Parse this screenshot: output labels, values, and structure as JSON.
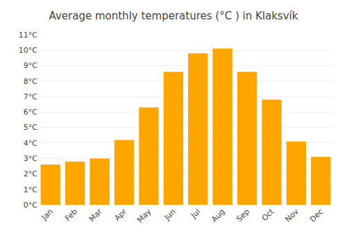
{
  "chart_data": {
    "type": "bar",
    "title": "Average monthly temperatures (°C ) in Klaksvík",
    "categories": [
      "Jan",
      "Feb",
      "Mar",
      "Apr",
      "May",
      "Jun",
      "Jul",
      "Aug",
      "Sep",
      "Oct",
      "Nov",
      "Dec"
    ],
    "values": [
      2.6,
      2.8,
      3.0,
      4.2,
      6.3,
      8.6,
      9.8,
      10.1,
      8.6,
      6.8,
      4.1,
      3.1
    ],
    "color": "#FFA500",
    "ylim": [
      0,
      11
    ],
    "yticks": [
      {
        "value": 0,
        "label": "0°C"
      },
      {
        "value": 1,
        "label": "1°C"
      },
      {
        "value": 2,
        "label": "2°C"
      },
      {
        "value": 3,
        "label": "3°C"
      },
      {
        "value": 4,
        "label": "4°C"
      },
      {
        "value": 5,
        "label": "5°C"
      },
      {
        "value": 6,
        "label": "6°C"
      },
      {
        "value": 7,
        "label": "7°C"
      },
      {
        "value": 8,
        "label": "8°C"
      },
      {
        "value": 9,
        "label": "9°C"
      },
      {
        "value": 10,
        "label": "10°C"
      },
      {
        "value": 11,
        "label": "11°C"
      }
    ],
    "grid": true
  }
}
